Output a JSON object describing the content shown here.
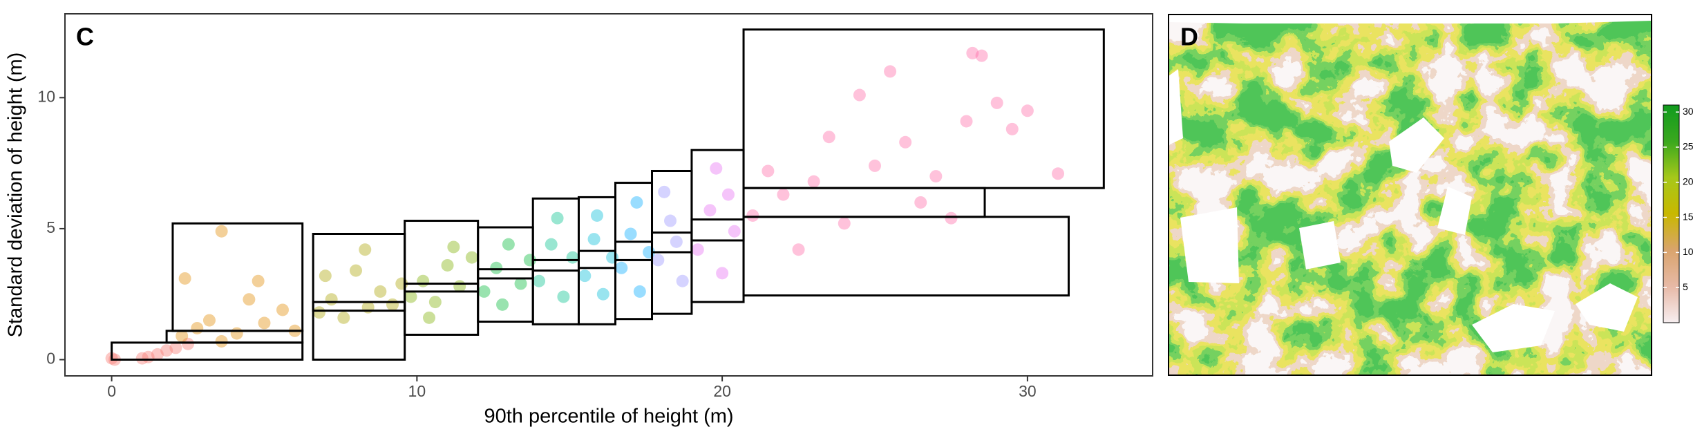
{
  "chart_data": [
    {
      "type": "scatter",
      "panel_label": "C",
      "xlabel": "90th percentile of height (m)",
      "ylabel": "Standard deviation of height (m)",
      "xlim": [
        -1.53,
        34.1
      ],
      "ylim": [
        -0.62,
        13.2
      ],
      "xticks": [
        0,
        10,
        20,
        30
      ],
      "yticks": [
        0,
        5,
        10
      ],
      "series": [
        {
          "color": "#F8766D",
          "x": [
            0,
            1.0,
            1.2,
            1.5,
            1.8,
            2.1,
            2.5,
            0.1
          ],
          "y": [
            0.05,
            0.05,
            0.1,
            0.2,
            0.35,
            0.45,
            0.6,
            0.0
          ]
        },
        {
          "color": "#E18A00",
          "x": [
            2.3,
            2.8,
            3.2,
            3.6,
            4.1,
            4.5,
            5.0,
            5.6,
            6.0,
            3.6,
            2.4,
            4.8
          ],
          "y": [
            0.9,
            1.2,
            1.5,
            4.9,
            1.0,
            2.3,
            1.4,
            1.9,
            1.1,
            0.7,
            3.1,
            3.0
          ]
        },
        {
          "color": "#ABA300",
          "x": [
            6.8,
            7.2,
            7.6,
            8.0,
            8.4,
            8.8,
            9.2,
            9.5,
            7.0,
            8.3
          ],
          "y": [
            1.8,
            2.3,
            1.6,
            3.4,
            2.0,
            2.6,
            2.1,
            2.9,
            3.2,
            4.2
          ]
        },
        {
          "color": "#7CAE00",
          "x": [
            9.8,
            10.2,
            10.6,
            11.0,
            11.4,
            11.8,
            10.4,
            11.2
          ],
          "y": [
            2.4,
            3.0,
            2.2,
            3.6,
            2.8,
            3.9,
            1.6,
            4.3
          ]
        },
        {
          "color": "#00BA38",
          "x": [
            12.2,
            12.6,
            13.0,
            13.4,
            13.7,
            12.8
          ],
          "y": [
            2.6,
            3.5,
            4.4,
            2.9,
            3.8,
            2.1
          ]
        },
        {
          "color": "#00C08B",
          "x": [
            14.0,
            14.4,
            14.8,
            15.1,
            14.6
          ],
          "y": [
            3.0,
            4.4,
            2.4,
            3.9,
            5.4
          ]
        },
        {
          "color": "#00BCD8",
          "x": [
            15.5,
            15.8,
            16.1,
            16.4,
            15.9
          ],
          "y": [
            3.2,
            4.6,
            2.5,
            3.9,
            5.5
          ]
        },
        {
          "color": "#00A9FF",
          "x": [
            16.7,
            17.0,
            17.3,
            17.6,
            17.2
          ],
          "y": [
            3.5,
            4.8,
            2.6,
            4.1,
            6.0
          ]
        },
        {
          "color": "#9590FF",
          "x": [
            17.9,
            18.3,
            18.7,
            18.1,
            18.5
          ],
          "y": [
            3.8,
            5.3,
            3.0,
            6.4,
            4.5
          ]
        },
        {
          "color": "#E76BF3",
          "x": [
            19.2,
            19.6,
            20.0,
            20.4,
            19.8,
            20.2
          ],
          "y": [
            4.2,
            5.7,
            3.3,
            4.9,
            7.3,
            6.3
          ]
        },
        {
          "color": "#FF67A4",
          "x": [
            21,
            22,
            23,
            24,
            25,
            26,
            27,
            28,
            29,
            30,
            31,
            22.5,
            24.5,
            26.5,
            28.5,
            21.5,
            23.5,
            25.5,
            27.5,
            29.5,
            28.2
          ],
          "y": [
            5.5,
            6.3,
            6.8,
            5.2,
            7.4,
            8.3,
            7.0,
            9.1,
            9.8,
            9.5,
            7.1,
            4.2,
            10.1,
            6.0,
            11.6,
            7.2,
            8.5,
            11.0,
            5.4,
            8.8,
            11.7
          ]
        }
      ],
      "boxes": [
        {
          "x": [
            0,
            6.25
          ],
          "y": [
            0,
            0.65
          ]
        },
        {
          "x": [
            1.8,
            6.25
          ],
          "y": [
            0.65,
            1.1
          ]
        },
        {
          "x": [
            2.0,
            6.25
          ],
          "y": [
            1.1,
            5.2
          ]
        },
        {
          "x": [
            6.6,
            9.6
          ],
          "y": [
            0,
            4.8
          ]
        },
        {
          "x": [
            6.6,
            9.6
          ],
          "y": [
            1.87,
            2.2
          ]
        },
        {
          "x": [
            9.6,
            12.0
          ],
          "y": [
            0.95,
            5.3
          ]
        },
        {
          "x": [
            9.6,
            12.0
          ],
          "y": [
            2.6,
            2.9
          ]
        },
        {
          "x": [
            12.0,
            13.8
          ],
          "y": [
            1.45,
            5.05
          ]
        },
        {
          "x": [
            12.0,
            13.8
          ],
          "y": [
            3.1,
            3.45
          ]
        },
        {
          "x": [
            13.8,
            15.3
          ],
          "y": [
            1.35,
            6.15
          ]
        },
        {
          "x": [
            13.8,
            15.3
          ],
          "y": [
            3.4,
            3.8
          ]
        },
        {
          "x": [
            15.3,
            16.5
          ],
          "y": [
            1.35,
            6.2
          ]
        },
        {
          "x": [
            15.3,
            16.5
          ],
          "y": [
            3.5,
            4.15
          ]
        },
        {
          "x": [
            16.5,
            17.7
          ],
          "y": [
            1.55,
            6.75
          ]
        },
        {
          "x": [
            16.5,
            17.7
          ],
          "y": [
            3.8,
            4.5
          ]
        },
        {
          "x": [
            17.7,
            19.0
          ],
          "y": [
            1.75,
            7.2
          ]
        },
        {
          "x": [
            17.7,
            19.0
          ],
          "y": [
            4.1,
            4.85
          ]
        },
        {
          "x": [
            19.0,
            20.7
          ],
          "y": [
            2.2,
            8.0
          ]
        },
        {
          "x": [
            19.0,
            20.7
          ],
          "y": [
            4.55,
            5.35
          ]
        },
        {
          "x": [
            20.7,
            32.5
          ],
          "y": [
            6.55,
            12.6
          ]
        },
        {
          "x": [
            20.7,
            28.6
          ],
          "y": [
            5.45,
            6.55
          ]
        },
        {
          "x": [
            20.7,
            31.35
          ],
          "y": [
            2.45,
            5.45
          ]
        }
      ]
    },
    {
      "type": "raster",
      "panel_label": "D",
      "colorbar": {
        "lim": [
          0,
          31
        ],
        "ticks": [
          5,
          10,
          15,
          20,
          25,
          30
        ],
        "colors": [
          "#f7eef0",
          "#e7b9a6",
          "#d9a46d",
          "#c9b800",
          "#a6c81a",
          "#3aa81e",
          "#119b1e"
        ]
      }
    }
  ]
}
